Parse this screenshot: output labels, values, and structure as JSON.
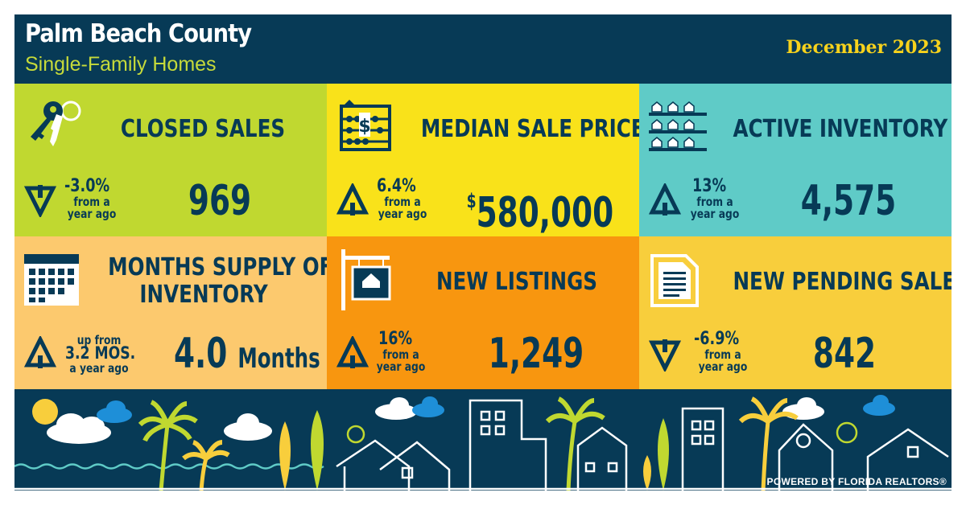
{
  "header": {
    "title": "Palm Beach County",
    "subtitle": "Single-Family Homes",
    "date": "December 2023"
  },
  "colors": {
    "navy": "#073a56",
    "lime": "#c0d830",
    "yellow": "#f9e21a",
    "teal": "#5fcbc7",
    "peach": "#fcc96e",
    "orange": "#f8960f",
    "gold": "#f8ce3c"
  },
  "panels": {
    "closed_sales": {
      "title": "CLOSED SALES",
      "icon": "keys-icon",
      "direction": "down",
      "change": "-3.0%",
      "from": "from a",
      "year": "year ago",
      "value": "969"
    },
    "median_price": {
      "title": "MEDIAN SALE PRICE",
      "icon": "abacus-icon",
      "direction": "up",
      "change": "6.4%",
      "from": "from a",
      "year": "year ago",
      "currency": "$",
      "value": "580,000"
    },
    "active_inventory": {
      "title": "ACTIVE INVENTORY",
      "icon": "houses-shelf-icon",
      "direction": "up",
      "change": "13%",
      "from": "from a",
      "year": "year ago",
      "value": "4,575"
    },
    "months_supply": {
      "title_line1": "MONTHS SUPPLY OF",
      "title_line2": "INVENTORY",
      "icon": "calendar-icon",
      "direction": "up",
      "up_from": "up from",
      "prior": "3.2 MOS.",
      "year": "a year ago",
      "value": "4.0",
      "unit": "Months"
    },
    "new_listings": {
      "title": "NEW LISTINGS",
      "icon": "for-sale-sign-icon",
      "direction": "up",
      "change": "16%",
      "from": "from a",
      "year": "year ago",
      "value": "1,249"
    },
    "pending_sales": {
      "title": "NEW PENDING SALES",
      "icon": "document-icon",
      "direction": "down",
      "change": "-6.9%",
      "from": "from a",
      "year": "year ago",
      "value": "842"
    }
  },
  "footer": {
    "powered_by": "POWERED BY FLORIDA REALTORS®"
  }
}
